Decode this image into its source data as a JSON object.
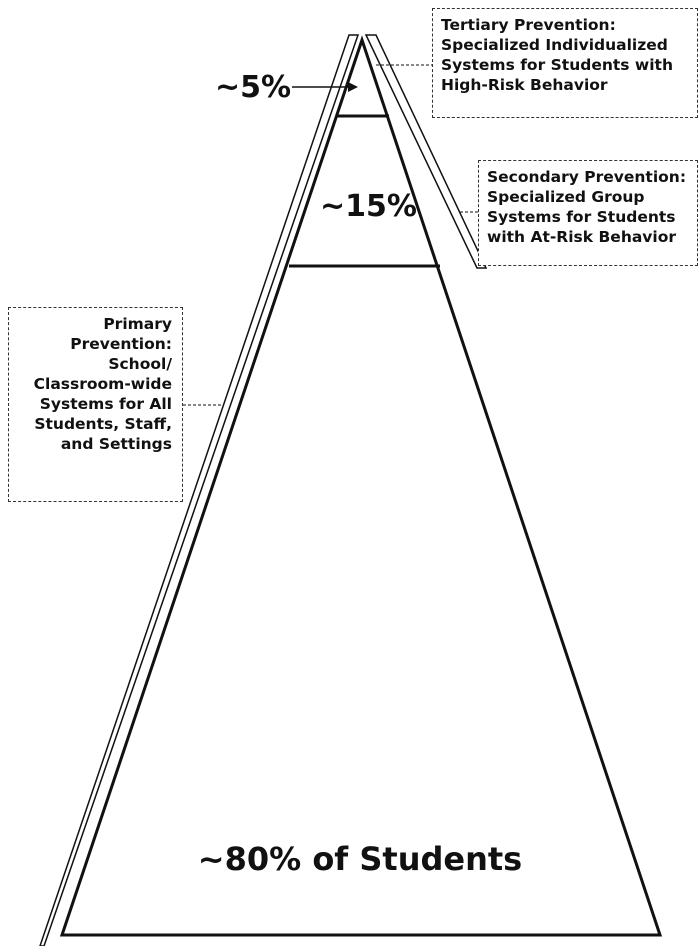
{
  "diagram": {
    "tiers": [
      {
        "id": "tertiary",
        "percent_label": "~5%"
      },
      {
        "id": "secondary",
        "percent_label": "~15%"
      },
      {
        "id": "primary",
        "percent_label": "~80% of Students"
      }
    ],
    "callouts": {
      "tertiary": [
        "Tertiary Prevention:",
        "Specialized Individualized",
        "Systems for Students with",
        "High-Risk Behavior"
      ],
      "secondary": [
        "Secondary Prevention:",
        "Specialized Group",
        "Systems for Students",
        "with At-Risk Behavior"
      ],
      "primary": [
        "Primary",
        "Prevention:",
        "School/",
        "Classroom-wide",
        "Systems for All",
        "Students, Staff,",
        "and Settings"
      ]
    }
  },
  "colors": {
    "line": "#111111",
    "box_border": "#333333",
    "background": "#ffffff"
  }
}
